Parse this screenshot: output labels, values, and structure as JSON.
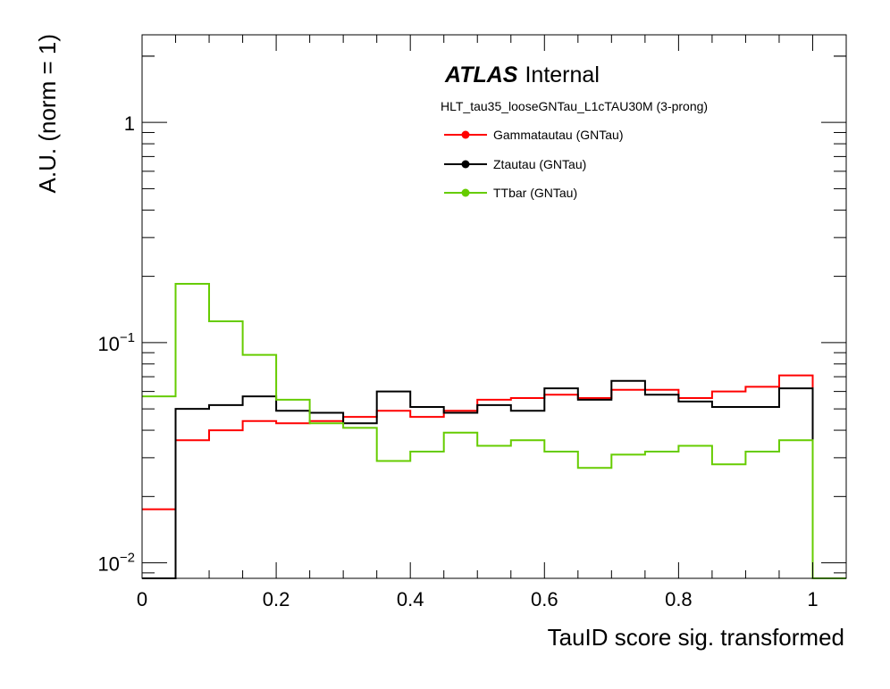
{
  "chart_data": {
    "type": "line",
    "step": true,
    "xlabel": "TauID score sig. transformed",
    "ylabel": "A.U. (norm = 1)",
    "xlim": [
      0,
      1.05
    ],
    "ylim": [
      0.0085,
      2.5
    ],
    "yscale": "log",
    "x_ticks": [
      0,
      0.2,
      0.4,
      0.6,
      0.8,
      1
    ],
    "x_tick_labels": [
      "0",
      "0.2",
      "0.4",
      "0.6",
      "0.8",
      "1"
    ],
    "y_ticks": [
      {
        "value": 0.01,
        "base": "10",
        "exp": "−2"
      },
      {
        "value": 0.1,
        "base": "10",
        "exp": "−1"
      },
      {
        "value": 1,
        "base": "1",
        "exp": ""
      }
    ],
    "bin_edges": [
      0,
      0.05,
      0.1,
      0.15,
      0.2,
      0.25,
      0.3,
      0.35,
      0.4,
      0.45,
      0.5,
      0.55,
      0.6,
      0.65,
      0.7,
      0.75,
      0.8,
      0.85,
      0.9,
      0.95,
      1.0
    ],
    "atlas_label": "ATLAS",
    "atlas_status": "Internal",
    "trigger_label": "HLT_tau35_looseGNTau_L1cTAU30M (3-prong)",
    "legend_position": "top-center",
    "series": [
      {
        "name": "Gammatautau (GNTau)",
        "color": "#ff0000",
        "values": [
          0.0175,
          0.036,
          0.04,
          0.044,
          0.043,
          0.044,
          0.046,
          0.049,
          0.046,
          0.049,
          0.055,
          0.056,
          0.058,
          0.056,
          0.061,
          0.061,
          0.056,
          0.06,
          0.063,
          0.071
        ]
      },
      {
        "name": "Ztautau (GNTau)",
        "color": "#000000",
        "values": [
          0.0085,
          0.05,
          0.052,
          0.057,
          0.049,
          0.048,
          0.043,
          0.06,
          0.051,
          0.048,
          0.052,
          0.049,
          0.062,
          0.055,
          0.067,
          0.058,
          0.054,
          0.051,
          0.051,
          0.062
        ]
      },
      {
        "name": "TTbar (GNTau)",
        "color": "#66cc00",
        "values": [
          0.057,
          0.185,
          0.125,
          0.088,
          0.055,
          0.043,
          0.041,
          0.029,
          0.032,
          0.039,
          0.034,
          0.036,
          0.032,
          0.027,
          0.031,
          0.032,
          0.034,
          0.028,
          0.032,
          0.036
        ]
      }
    ]
  }
}
